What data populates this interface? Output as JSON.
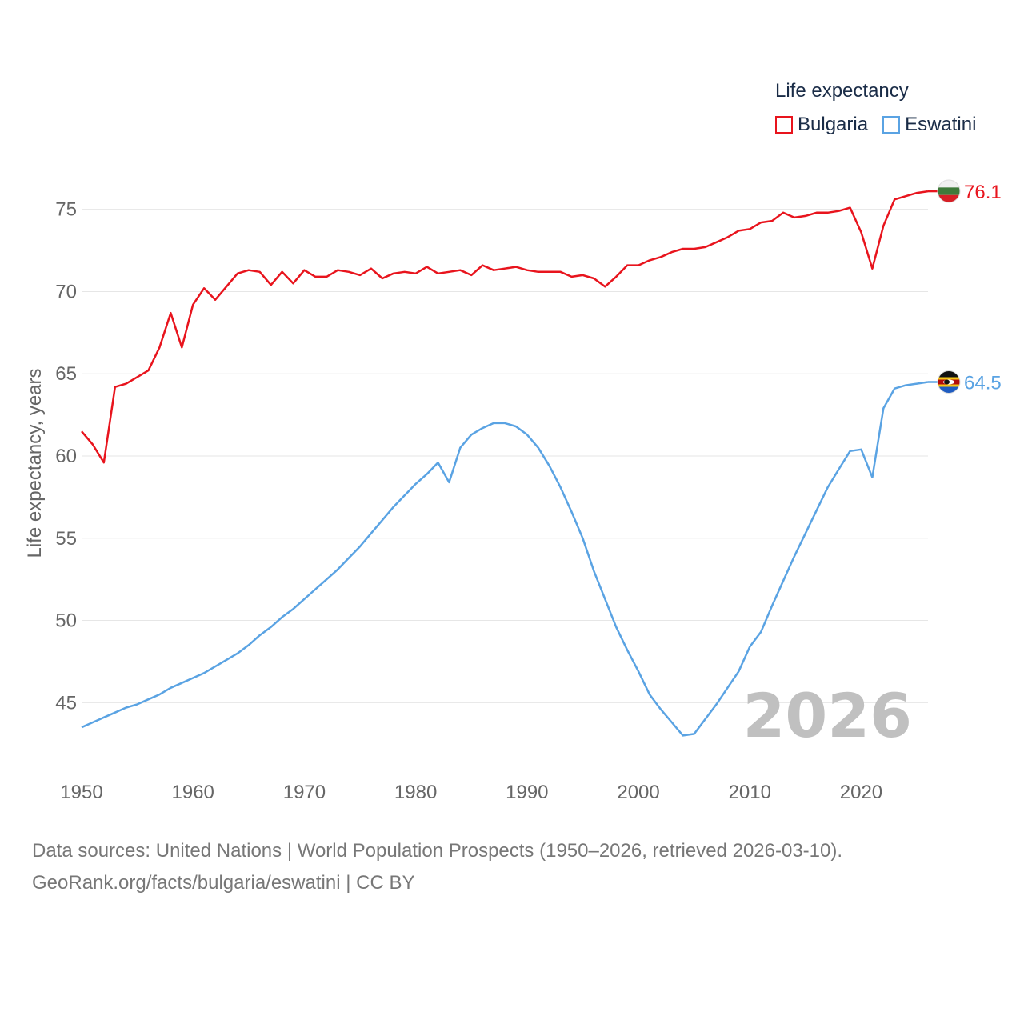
{
  "legend": {
    "title": "Life expectancy",
    "items": [
      {
        "label": "Bulgaria",
        "color": "#e8141d"
      },
      {
        "label": "Eswatini",
        "color": "#5aa3e3"
      }
    ]
  },
  "footer": {
    "line1": "Data sources: United Nations | World Population Prospects (1950–2026, retrieved 2026-03-10).",
    "line2": "GeoRank.org/facts/bulgaria/eswatini | CC BY"
  },
  "chart_data": {
    "type": "line",
    "title": "Life expectancy",
    "xlabel": "",
    "ylabel": "Life expectancy, years",
    "xlim": [
      1950,
      2026
    ],
    "ylim": [
      42,
      78
    ],
    "x_ticks": [
      1950,
      1960,
      1970,
      1980,
      1990,
      2000,
      2010,
      2020
    ],
    "y_ticks": [
      45,
      50,
      55,
      60,
      65,
      70,
      75
    ],
    "grid": true,
    "year_label": "2026",
    "x_start": 1950,
    "series": [
      {
        "name": "Bulgaria",
        "color": "#e8141d",
        "end_label": "76.1",
        "values": [
          61.5,
          60.7,
          59.6,
          64.2,
          64.4,
          64.8,
          65.2,
          66.6,
          68.7,
          66.6,
          69.2,
          70.2,
          69.5,
          70.3,
          71.1,
          71.3,
          71.2,
          70.4,
          71.2,
          70.5,
          71.3,
          70.9,
          70.9,
          71.3,
          71.2,
          71.0,
          71.4,
          70.8,
          71.1,
          71.2,
          71.1,
          71.5,
          71.1,
          71.2,
          71.3,
          71.0,
          71.6,
          71.3,
          71.4,
          71.5,
          71.3,
          71.2,
          71.2,
          71.2,
          70.9,
          71.0,
          70.8,
          70.3,
          70.9,
          71.6,
          71.6,
          71.9,
          72.1,
          72.4,
          72.6,
          72.6,
          72.7,
          73.0,
          73.3,
          73.7,
          73.8,
          74.2,
          74.3,
          74.8,
          74.5,
          74.6,
          74.8,
          74.8,
          74.9,
          75.1,
          73.6,
          71.4,
          74.0,
          75.6,
          75.8,
          76.0,
          76.1
        ]
      },
      {
        "name": "Eswatini",
        "color": "#5aa3e3",
        "end_label": "64.5",
        "values": [
          43.5,
          43.8,
          44.1,
          44.4,
          44.7,
          44.9,
          45.2,
          45.5,
          45.9,
          46.2,
          46.5,
          46.8,
          47.2,
          47.6,
          48.0,
          48.5,
          49.1,
          49.6,
          50.2,
          50.7,
          51.3,
          51.9,
          52.5,
          53.1,
          53.8,
          54.5,
          55.3,
          56.1,
          56.9,
          57.6,
          58.3,
          58.9,
          59.6,
          58.4,
          60.5,
          61.3,
          61.7,
          62.0,
          62.0,
          61.8,
          61.3,
          60.5,
          59.4,
          58.1,
          56.6,
          55.0,
          53.0,
          51.3,
          49.6,
          48.2,
          46.9,
          45.5,
          44.6,
          43.8,
          43.0,
          43.1,
          44.0,
          44.9,
          45.9,
          46.9,
          48.4,
          49.3,
          50.9,
          52.4,
          53.9,
          55.3,
          56.7,
          58.1,
          59.2,
          60.3,
          60.4,
          58.7,
          62.9,
          64.1,
          64.3,
          64.4,
          64.5
        ]
      }
    ]
  }
}
